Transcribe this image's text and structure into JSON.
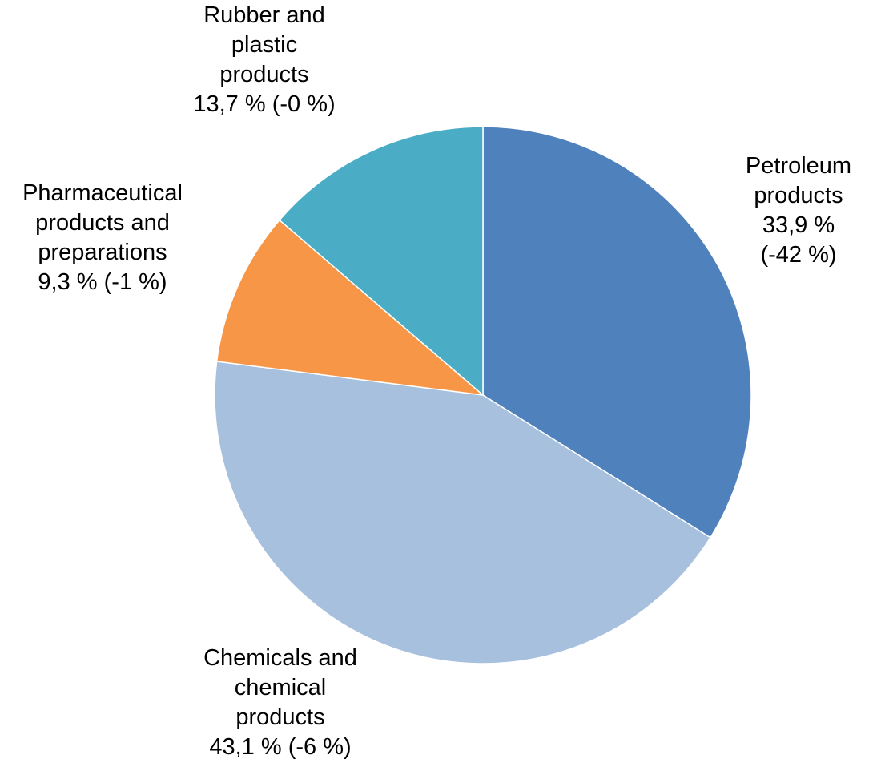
{
  "chart_data": {
    "type": "pie",
    "categories": [
      "Petroleum products",
      "Chemicals and chemical products",
      "Pharmaceutical products and preparations",
      "Rubber and plastic products"
    ],
    "values": [
      33.9,
      43.1,
      9.3,
      13.7
    ],
    "value_labels": [
      "33,9 %",
      "43,1 %",
      "9,3 %",
      "13,7 %"
    ],
    "change_labels": [
      "(-42 %)",
      "(-6 %)",
      "(-1 %)",
      "(-0 %)"
    ],
    "colors": [
      "#4f81bd",
      "#a7c0de",
      "#f79646",
      "#4bacc6"
    ]
  }
}
